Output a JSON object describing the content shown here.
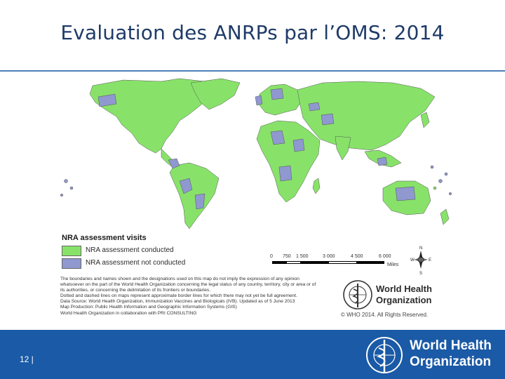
{
  "slide": {
    "title": "Evaluation des ANRPs par l’OMS: 2014",
    "page_number": "12 |"
  },
  "legend": {
    "title": "NRA assessment visits",
    "items": [
      {
        "label": "NRA assessment conducted",
        "color": "#88e26a"
      },
      {
        "label": "NRA assessment not conducted",
        "color": "#8f98cf"
      }
    ]
  },
  "scale": {
    "ticks": [
      "0",
      "750",
      "1 500",
      "3 000",
      "4 500",
      "6 000"
    ],
    "unit": "Miles"
  },
  "compass": {
    "n": "N",
    "s": "S",
    "e": "E",
    "w": "W"
  },
  "disclaimer": [
    "The boundaries and names shown and the designations used on this map do not imply the expression of any opinion",
    "whatsoever on the part of the World Health Organization concerning the legal status of any country, territory, city or area or of",
    "its authorities, or concerning the delimitation of its frontiers or boundaries.",
    "Dotted and dashed lines on maps represent approximate border lines for which there may not yet be full agreement.",
    "Data Source: World Health Organization, Immunization Vaccines and Biologicals (IVB). Updated as of 5 June 2013",
    "Map Production: Public Health Information and Geographic Information Systems (GIS)",
    "World Health Organization in collaboration with PRI CONSULTING"
  ],
  "who_inline": {
    "line1": "World Health",
    "line2": "Organization",
    "copyright": "© WHO 2014. All Rights Reserved."
  },
  "footer_logo": {
    "line1": "World Health",
    "line2": "Organization"
  },
  "colors": {
    "conducted": "#88e26a",
    "not_conducted": "#8f98cf",
    "footer": "#1a5aa6",
    "title": "#1f3b68"
  }
}
